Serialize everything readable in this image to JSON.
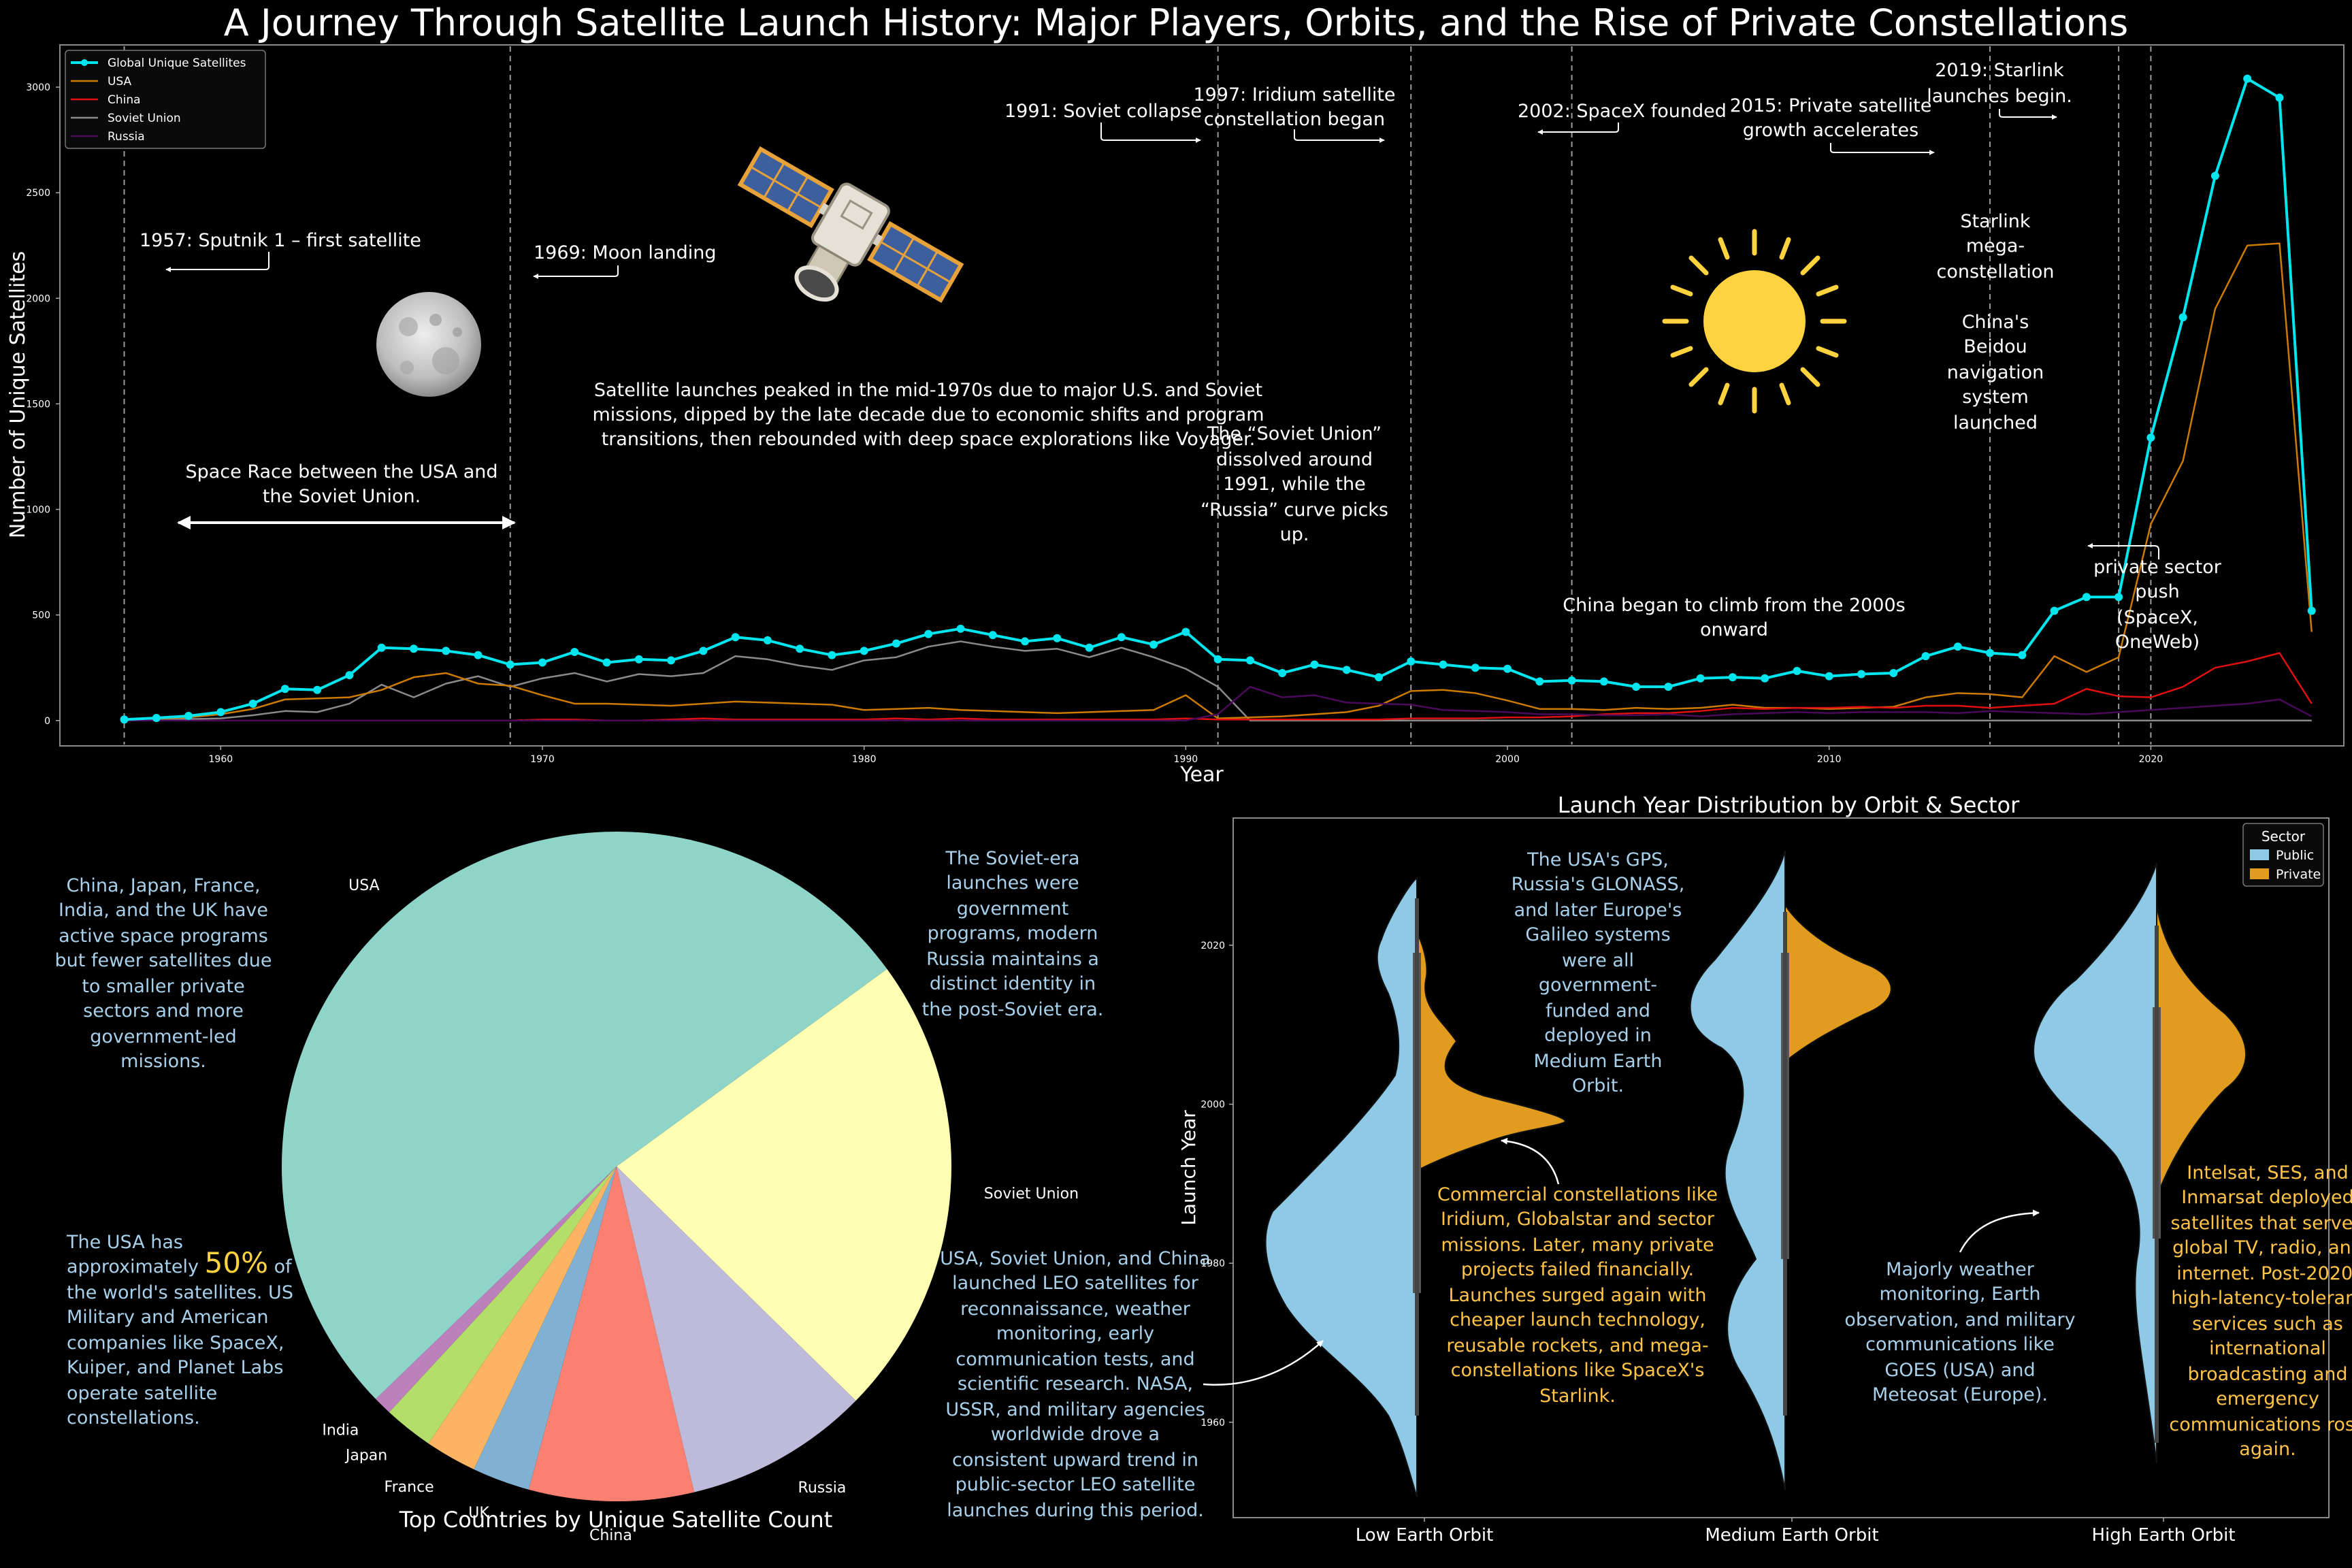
{
  "title": "A Journey Through Satellite Launch History: Major Players, Orbits, and the Rise of Private Constellations",
  "chart_data": [
    {
      "type": "line",
      "xlabel": "Year",
      "ylabel": "Number of Unique Satellites",
      "xlim": [
        1955,
        2026
      ],
      "ylim": [
        -120,
        3200
      ],
      "xticks": [
        "1960",
        "1970",
        "1980",
        "1990",
        "2000",
        "2010",
        "2020"
      ],
      "yticks": [
        "0",
        "500",
        "1000",
        "1500",
        "2000",
        "2500",
        "3000"
      ],
      "legend_position": "top-left",
      "x": [
        1957,
        1958,
        1959,
        1960,
        1961,
        1962,
        1963,
        1964,
        1965,
        1966,
        1967,
        1968,
        1969,
        1970,
        1971,
        1972,
        1973,
        1974,
        1975,
        1976,
        1977,
        1978,
        1979,
        1980,
        1981,
        1982,
        1983,
        1984,
        1985,
        1986,
        1987,
        1988,
        1989,
        1990,
        1991,
        1992,
        1993,
        1994,
        1995,
        1996,
        1997,
        1998,
        1999,
        2000,
        2001,
        2002,
        2003,
        2004,
        2005,
        2006,
        2007,
        2008,
        2009,
        2010,
        2011,
        2012,
        2013,
        2014,
        2015,
        2016,
        2017,
        2018,
        2019,
        2020,
        2021,
        2022,
        2023,
        2024,
        2025
      ],
      "series": [
        {
          "name": "Global Unique Satellites",
          "color": "#00e5ee",
          "markers": true,
          "values": [
            5,
            12,
            22,
            40,
            80,
            150,
            145,
            215,
            345,
            340,
            330,
            310,
            265,
            275,
            325,
            275,
            290,
            285,
            330,
            395,
            380,
            340,
            310,
            330,
            365,
            410,
            435,
            405,
            375,
            390,
            345,
            395,
            360,
            420,
            290,
            285,
            225,
            265,
            240,
            205,
            280,
            265,
            250,
            245,
            185,
            190,
            185,
            160,
            160,
            200,
            205,
            200,
            235,
            210,
            220,
            225,
            305,
            350,
            320,
            310,
            520,
            585,
            585,
            1340,
            1910,
            2580,
            3040,
            2950,
            520
          ]
        },
        {
          "name": "USA",
          "color": "#cc7a00",
          "markers": false,
          "values": [
            2,
            8,
            15,
            30,
            55,
            100,
            105,
            110,
            145,
            205,
            225,
            175,
            165,
            120,
            80,
            80,
            75,
            70,
            80,
            90,
            85,
            80,
            75,
            50,
            55,
            60,
            50,
            45,
            40,
            35,
            40,
            45,
            50,
            120,
            10,
            15,
            20,
            30,
            40,
            70,
            140,
            145,
            130,
            95,
            55,
            55,
            50,
            60,
            55,
            60,
            75,
            60,
            60,
            55,
            60,
            65,
            110,
            130,
            125,
            110,
            305,
            230,
            300,
            930,
            1230,
            1950,
            2250,
            2260,
            420
          ]
        },
        {
          "name": "China",
          "color": "#e01010",
          "markers": false,
          "values": [
            0,
            0,
            0,
            0,
            0,
            0,
            0,
            0,
            0,
            0,
            0,
            0,
            0,
            5,
            5,
            0,
            0,
            5,
            10,
            5,
            5,
            5,
            5,
            5,
            10,
            5,
            10,
            5,
            5,
            5,
            5,
            5,
            5,
            10,
            5,
            5,
            5,
            5,
            5,
            5,
            10,
            10,
            10,
            15,
            15,
            20,
            30,
            35,
            35,
            45,
            60,
            55,
            60,
            60,
            65,
            60,
            70,
            70,
            60,
            70,
            80,
            150,
            115,
            110,
            160,
            250,
            280,
            320,
            80
          ]
        },
        {
          "name": "Soviet Union",
          "color": "#8a8a8a",
          "markers": false,
          "values": [
            3,
            4,
            7,
            10,
            25,
            45,
            40,
            80,
            170,
            110,
            175,
            210,
            160,
            200,
            225,
            185,
            220,
            210,
            225,
            305,
            290,
            260,
            240,
            285,
            300,
            350,
            375,
            350,
            330,
            340,
            300,
            345,
            300,
            245,
            160,
            0,
            0,
            0,
            0,
            0,
            0,
            0,
            0,
            0,
            0,
            0,
            0,
            0,
            0,
            0,
            0,
            0,
            0,
            0,
            0,
            0,
            0,
            0,
            0,
            0,
            0,
            0,
            0,
            0,
            0,
            0,
            0,
            0,
            0
          ]
        },
        {
          "name": "Russia",
          "color": "#4a0a5a",
          "markers": false,
          "values": [
            0,
            0,
            0,
            0,
            0,
            0,
            0,
            0,
            0,
            0,
            0,
            0,
            0,
            0,
            0,
            0,
            0,
            0,
            0,
            0,
            0,
            0,
            0,
            0,
            0,
            0,
            0,
            0,
            0,
            0,
            0,
            0,
            0,
            0,
            30,
            160,
            110,
            120,
            85,
            80,
            75,
            50,
            45,
            40,
            30,
            30,
            25,
            25,
            30,
            20,
            30,
            35,
            40,
            35,
            40,
            40,
            40,
            35,
            45,
            40,
            35,
            30,
            40,
            50,
            60,
            70,
            80,
            100,
            20
          ]
        }
      ]
    },
    {
      "type": "pie",
      "title": "Top Countries by Unique Satellite Count",
      "slices": [
        {
          "label": "USA",
          "value": 52.5,
          "color": "#8fd4c8"
        },
        {
          "label": "Soviet Union",
          "value": 22.5,
          "color": "#ffffb3"
        },
        {
          "label": "Russia",
          "value": 9.0,
          "color": "#bebada"
        },
        {
          "label": "China",
          "value": 8.0,
          "color": "#fb8072"
        },
        {
          "label": "UK",
          "value": 2.8,
          "color": "#80b1d3"
        },
        {
          "label": "France",
          "value": 2.5,
          "color": "#fdb462"
        },
        {
          "label": "Japan",
          "value": 2.4,
          "color": "#b3de69"
        },
        {
          "label": "India",
          "value": 0.9,
          "color": "#bc80bd"
        }
      ]
    },
    {
      "type": "violin",
      "title": "Launch Year Distribution by Orbit & Sector",
      "xlabel": "",
      "ylabel": "Launch Year",
      "ylim": [
        1948,
        2036
      ],
      "yticks": [
        "1960",
        "1980",
        "2000",
        "2020"
      ],
      "categories": [
        "Low Earth Orbit",
        "Medium Earth Orbit",
        "High Earth Orbit"
      ],
      "legend_title": "Sector",
      "legend_position": "top-right",
      "series": [
        {
          "name": "Public",
          "color": "#8ecae6"
        },
        {
          "name": "Private",
          "color": "#e19b1f"
        }
      ]
    }
  ],
  "annotations": {
    "sputnik": "1957: Sputnik 1 – first satellite",
    "moon": "1969: Moon landing",
    "soviet_collapse": "1991: Soviet collapse",
    "iridium_l1": "1997: Iridium satellite",
    "iridium_l2": "constellation began",
    "spacex": "2002: SpaceX founded",
    "private_l1": "2015: Private satellite",
    "private_l2": "growth accelerates",
    "starlink_l1": "2019: Starlink",
    "starlink_l2": "launches begin.",
    "space_race_l1": "Space Race between the USA and",
    "space_race_l2": "the Soviet Union.",
    "peak_l1": "Satellite launches peaked in the mid-1970s due to major U.S. and Soviet",
    "peak_l2": "missions, dipped by the late decade due to economic shifts and program",
    "peak_l3": "transitions, then rebounded with deep space explorations like Voyager.",
    "dissolve_l1": "The “Soviet Union”",
    "dissolve_l2": "dissolved around",
    "dissolve_l3": "1991, while the",
    "dissolve_l4": "“Russia” curve picks",
    "dissolve_l5": "up.",
    "china_l1": "China began to climb from the 2000s",
    "china_l2": "onward",
    "mega_l1": "Starlink",
    "mega_l2": "mega-",
    "mega_l3": "constellation",
    "beidou_l1": "China's",
    "beidou_l2": "Beidou",
    "beidou_l3": "navigation",
    "beidou_l4": "system",
    "beidou_l5": "launched",
    "push_l1": "private sector",
    "push_l2": "push",
    "push_l3": "(SpaceX,",
    "push_l4": "OneWeb)",
    "pie_left_l1": "China, Japan, France,",
    "pie_left_l2": "India, and the UK have",
    "pie_left_l3": "active space programs",
    "pie_left_l4": "but fewer satellites due",
    "pie_left_l5": "to smaller private",
    "pie_left_l6": "sectors and more",
    "pie_left_l7": "government-led",
    "pie_left_l8": "missions.",
    "usa_l1": "The USA has",
    "usa_l2a": "approximately",
    "usa_pct": "50%",
    "usa_l2b": "of",
    "usa_l3": "the world's satellites. US",
    "usa_l4": "Military and American",
    "usa_l5": "companies like SpaceX,",
    "usa_l6": "Kuiper, and Planet Labs",
    "usa_l7": "operate satellite",
    "usa_l8": "constellations.",
    "soviet_era_l1": "The Soviet-era",
    "soviet_era_l2": "launches were",
    "soviet_era_l3": "government",
    "soviet_era_l4": "programs, modern",
    "soviet_era_l5": "Russia maintains a",
    "soviet_era_l6": "distinct identity in",
    "soviet_era_l7": "the post-Soviet era.",
    "leo_l1": "USA, Soviet Union, and China",
    "leo_l2": "launched LEO satellites for",
    "leo_l3": "reconnaissance, weather",
    "leo_l4": "monitoring, early",
    "leo_l5": "communication tests, and",
    "leo_l6": "scientific research. NASA,",
    "leo_l7": "USSR, and military agencies",
    "leo_l8": "worldwide drove a",
    "leo_l9": "consistent upward trend in",
    "leo_l10": "public-sector LEO satellite",
    "leo_l11": "launches during this period.",
    "meo_l1": "The USA's GPS,",
    "meo_l2": "Russia's GLONASS,",
    "meo_l3": "and later Europe's",
    "meo_l4": "Galileo systems",
    "meo_l5": "were all",
    "meo_l6": "government-",
    "meo_l7": "funded and",
    "meo_l8": "deployed in",
    "meo_l9": "Medium Earth",
    "meo_l10": "Orbit.",
    "comm_l1": "Commercial constellations like",
    "comm_l2": "Iridium, Globalstar and sector",
    "comm_l3": "missions. Later, many private",
    "comm_l4": "projects failed financially.",
    "comm_l5": "Launches surged again with",
    "comm_l6": "cheaper launch technology,",
    "comm_l7": "reusable rockets, and mega-",
    "comm_l8": "constellations like SpaceX's",
    "comm_l9": "Starlink.",
    "weather_l1": "Majorly weather",
    "weather_l2": "monitoring, Earth",
    "weather_l3": "observation, and military",
    "weather_l4": "communications like",
    "weather_l5": "GOES (USA) and",
    "weather_l6": "Meteosat (Europe).",
    "intelsat_l1": "Intelsat, SES, and",
    "intelsat_l2": "Inmarsat deployed",
    "intelsat_l3": "satellites that served",
    "intelsat_l4": "global TV, radio, and",
    "intelsat_l5": "internet. Post-2020,",
    "intelsat_l6": "high-latency-tolerant",
    "intelsat_l7": "services such as",
    "intelsat_l8": "international",
    "intelsat_l9": "broadcasting and",
    "intelsat_l10": "emergency",
    "intelsat_l11": "communications rose",
    "intelsat_l12": "again."
  }
}
